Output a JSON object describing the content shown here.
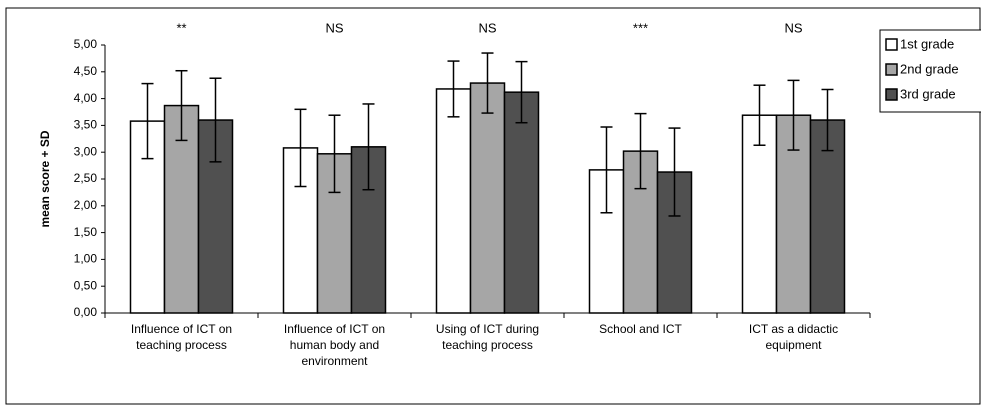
{
  "chart_data": {
    "type": "bar",
    "ylabel": "mean score + SD",
    "categories": [
      [
        "Influence of ICT on",
        "teaching process"
      ],
      [
        "Influence of ICT on",
        "human body and",
        "environment"
      ],
      [
        "Using of ICT during",
        "teaching process"
      ],
      [
        "School and ICT"
      ],
      [
        "ICT as a didactic",
        "equipment"
      ]
    ],
    "series": [
      {
        "name": "1st grade",
        "color": "#ffffff",
        "values": [
          3.58,
          3.08,
          4.18,
          2.67,
          3.69
        ],
        "errors": [
          0.7,
          0.72,
          0.52,
          0.8,
          0.56
        ]
      },
      {
        "name": "2nd grade",
        "color": "#a6a6a6",
        "values": [
          3.87,
          2.97,
          4.29,
          3.02,
          3.69
        ],
        "errors": [
          0.65,
          0.72,
          0.56,
          0.7,
          0.65
        ]
      },
      {
        "name": "3rd grade",
        "color": "#505050",
        "values": [
          3.6,
          3.1,
          4.12,
          2.63,
          3.6
        ],
        "errors": [
          0.78,
          0.8,
          0.57,
          0.82,
          0.57
        ]
      }
    ],
    "annotations": [
      "**",
      "NS",
      "NS",
      "***",
      "NS"
    ],
    "ylim": [
      0,
      5
    ],
    "yticks": [
      {
        "value": 0,
        "label": "0,00"
      },
      {
        "value": 0.5,
        "label": "0,50"
      },
      {
        "value": 1,
        "label": "1,00"
      },
      {
        "value": 1.5,
        "label": "1,50"
      },
      {
        "value": 2,
        "label": "2,00"
      },
      {
        "value": 2.5,
        "label": "2,50"
      },
      {
        "value": 3,
        "label": "3,00"
      },
      {
        "value": 3.5,
        "label": "3,50"
      },
      {
        "value": 4,
        "label": "4,00"
      },
      {
        "value": 4.5,
        "label": "4,50"
      },
      {
        "value": 5,
        "label": "5,00"
      }
    ],
    "legend": "right"
  }
}
